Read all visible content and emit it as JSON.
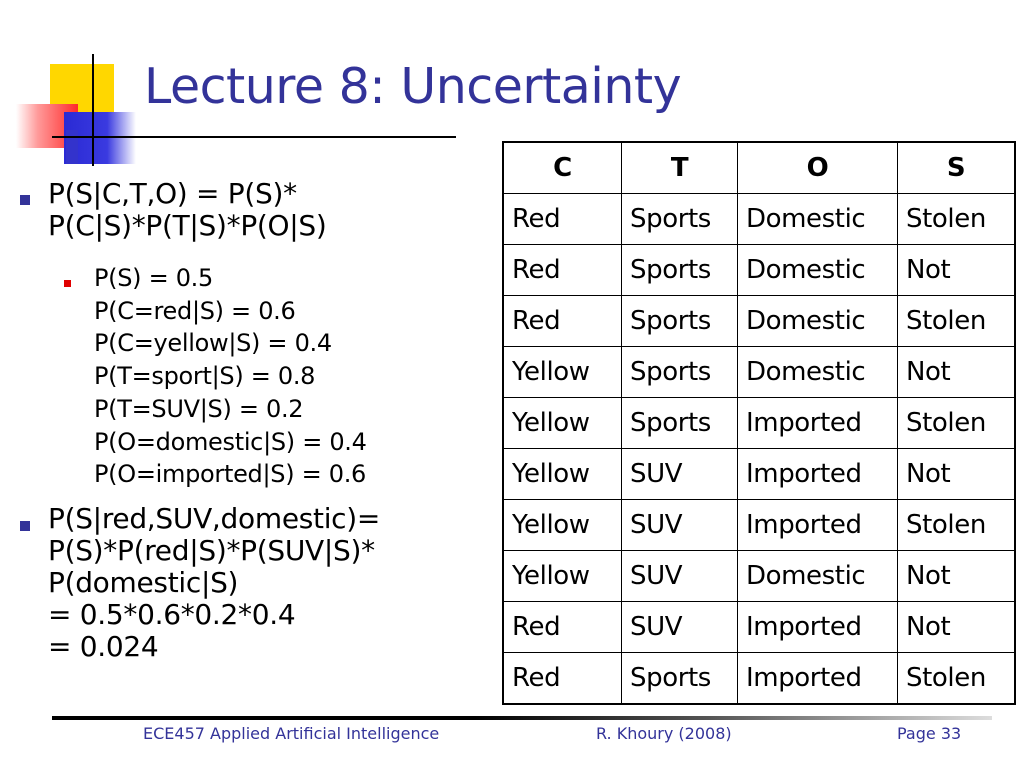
{
  "slide": {
    "title": "Lecture 8: Uncertainty"
  },
  "bullets": {
    "b1_lines": [
      "P(S|C,T,O) = P(S)*",
      "P(C|S)*P(T|S)*P(O|S)"
    ],
    "sub_lines": [
      "P(S) = 0.5",
      "P(C=red|S) = 0.6",
      "P(C=yellow|S) = 0.4",
      "P(T=sport|S) = 0.8",
      "P(T=SUV|S) = 0.2",
      "P(O=domestic|S) = 0.4",
      "P(O=imported|S) = 0.6"
    ],
    "b2_lines": [
      "P(S|red,SUV,domestic)=",
      "P(S)*P(red|S)*P(SUV|S)*",
      "P(domestic|S)",
      "= 0.5*0.6*0.2*0.4",
      "= 0.024"
    ]
  },
  "table": {
    "headers": [
      "C",
      "T",
      "O",
      "S"
    ],
    "rows": [
      [
        "Red",
        "Sports",
        "Domestic",
        "Stolen"
      ],
      [
        "Red",
        "Sports",
        "Domestic",
        "Not"
      ],
      [
        "Red",
        "Sports",
        "Domestic",
        "Stolen"
      ],
      [
        "Yellow",
        "Sports",
        "Domestic",
        "Not"
      ],
      [
        "Yellow",
        "Sports",
        "Imported",
        "Stolen"
      ],
      [
        "Yellow",
        "SUV",
        "Imported",
        "Not"
      ],
      [
        "Yellow",
        "SUV",
        "Imported",
        "Stolen"
      ],
      [
        "Yellow",
        "SUV",
        "Domestic",
        "Not"
      ],
      [
        "Red",
        "SUV",
        "Imported",
        "Not"
      ],
      [
        "Red",
        "Sports",
        "Imported",
        "Stolen"
      ]
    ]
  },
  "footer": {
    "course": "ECE457 Applied Artificial Intelligence",
    "author": "R. Khoury (2008)",
    "page": "Page 33"
  },
  "colors": {
    "title": "#333399",
    "bullet_primary": "#333399",
    "bullet_secondary": "#e00000",
    "footer_text": "#333399"
  }
}
